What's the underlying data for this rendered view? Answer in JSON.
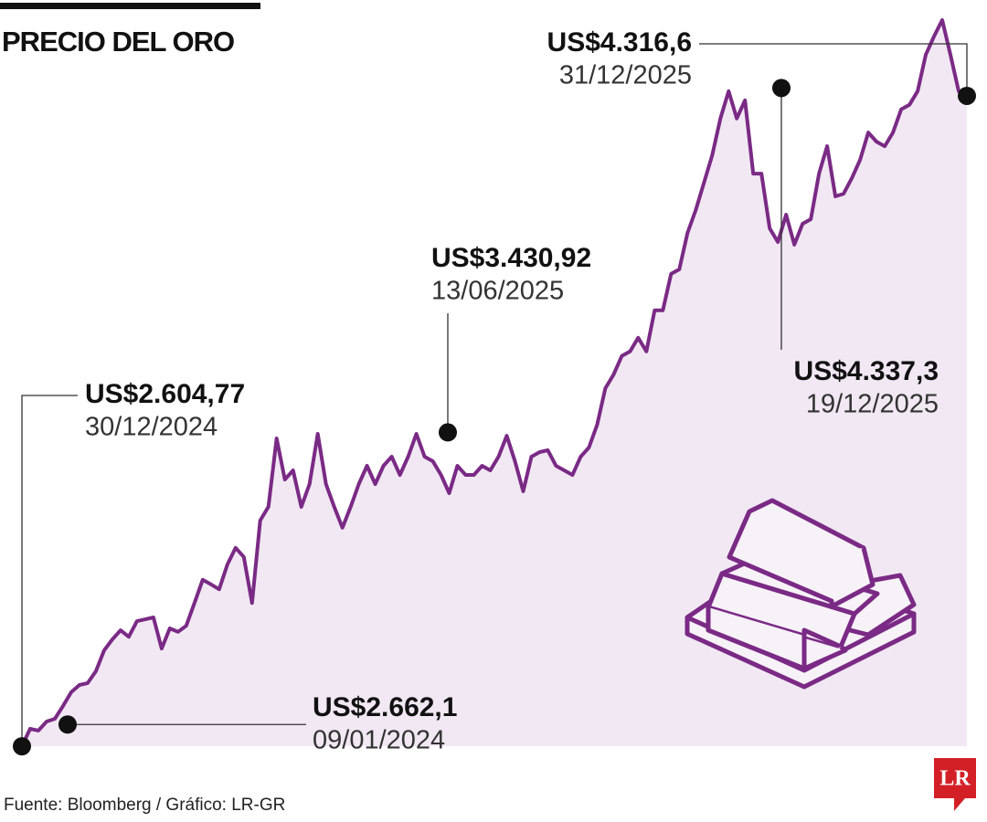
{
  "chart_data": {
    "type": "line",
    "title": "PRECIO DEL ORO",
    "source": "Fuente: Bloomberg / Gráfico: LR-GR",
    "logo": "LR",
    "color": "#7a2a85",
    "fill": "#f1e8f3",
    "values": [
      2605,
      2651,
      2646,
      2670,
      2677,
      2711,
      2747,
      2766,
      2771,
      2802,
      2857,
      2886,
      2910,
      2893,
      2934,
      2939,
      2944,
      2862,
      2915,
      2906,
      2922,
      2982,
      3043,
      3031,
      3018,
      3083,
      3127,
      3103,
      2982,
      3199,
      3235,
      3415,
      3307,
      3331,
      3235,
      3295,
      3427,
      3295,
      3235,
      3180,
      3235,
      3295,
      3343,
      3295,
      3343,
      3367,
      3319,
      3367,
      3427,
      3367,
      3355,
      3319,
      3271,
      3343,
      3319,
      3319,
      3343,
      3331,
      3367,
      3422,
      3355,
      3276,
      3367,
      3379,
      3384,
      3343,
      3331,
      3319,
      3367,
      3391,
      3451,
      3547,
      3583,
      3632,
      3644,
      3680,
      3644,
      3752,
      3752,
      3848,
      3860,
      3956,
      4016,
      4088,
      4160,
      4257,
      4329,
      4257,
      4305,
      4112,
      4112,
      3968,
      3932,
      4004,
      3925,
      3980,
      3992,
      4112,
      4184,
      4052,
      4059,
      4100,
      4148,
      4220,
      4196,
      4184,
      4220,
      4281,
      4293,
      4329,
      4425,
      4473,
      4516,
      4425,
      4329,
      4309
    ],
    "annotations": [
      {
        "value": 2604.77,
        "label": "US$2.604,77",
        "date": "30/12/2024"
      },
      {
        "value": 2662.1,
        "label": "US$2.662,1",
        "date": "09/01/2024"
      },
      {
        "value": 3430.92,
        "label": "US$3.430,92",
        "date": "13/06/2025"
      },
      {
        "value": 4337.3,
        "label": "US$4.337,3",
        "date": "19/12/2025"
      },
      {
        "value": 4316.6,
        "label": "US$4.316,6",
        "date": "31/12/2025"
      }
    ]
  }
}
